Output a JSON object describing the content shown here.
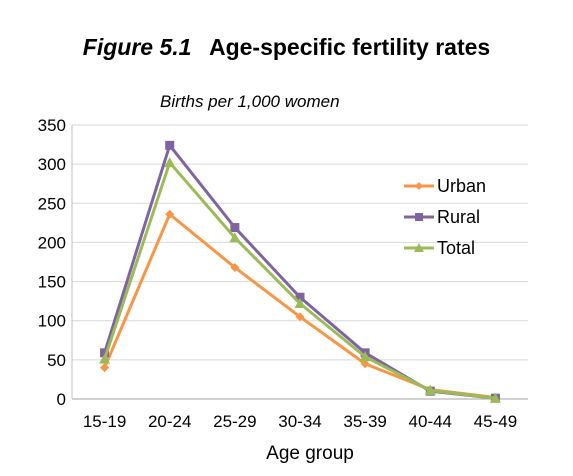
{
  "chart_data": {
    "type": "line",
    "figure_label": "Figure 5.1",
    "title": "Age-specific fertility rates",
    "subtitle": "Births per 1,000 women",
    "xlabel": "Age group",
    "ylabel": "",
    "categories": [
      "15-19",
      "20-24",
      "25-29",
      "30-34",
      "35-39",
      "40-44",
      "45-49"
    ],
    "ylim": [
      0,
      350
    ],
    "yticks": [
      0,
      50,
      100,
      150,
      200,
      250,
      300,
      350
    ],
    "grid": true,
    "legend_position": "right",
    "series": [
      {
        "name": "Urban",
        "color": "#f79646",
        "marker": "diamond",
        "values": [
          40,
          236,
          168,
          105,
          45,
          12,
          2
        ]
      },
      {
        "name": "Rural",
        "color": "#8064a2",
        "marker": "square",
        "values": [
          59,
          324,
          219,
          130,
          59,
          10,
          1
        ]
      },
      {
        "name": "Total",
        "color": "#9bbb59",
        "marker": "triangle",
        "values": [
          51,
          302,
          206,
          122,
          54,
          11,
          1
        ]
      }
    ]
  }
}
